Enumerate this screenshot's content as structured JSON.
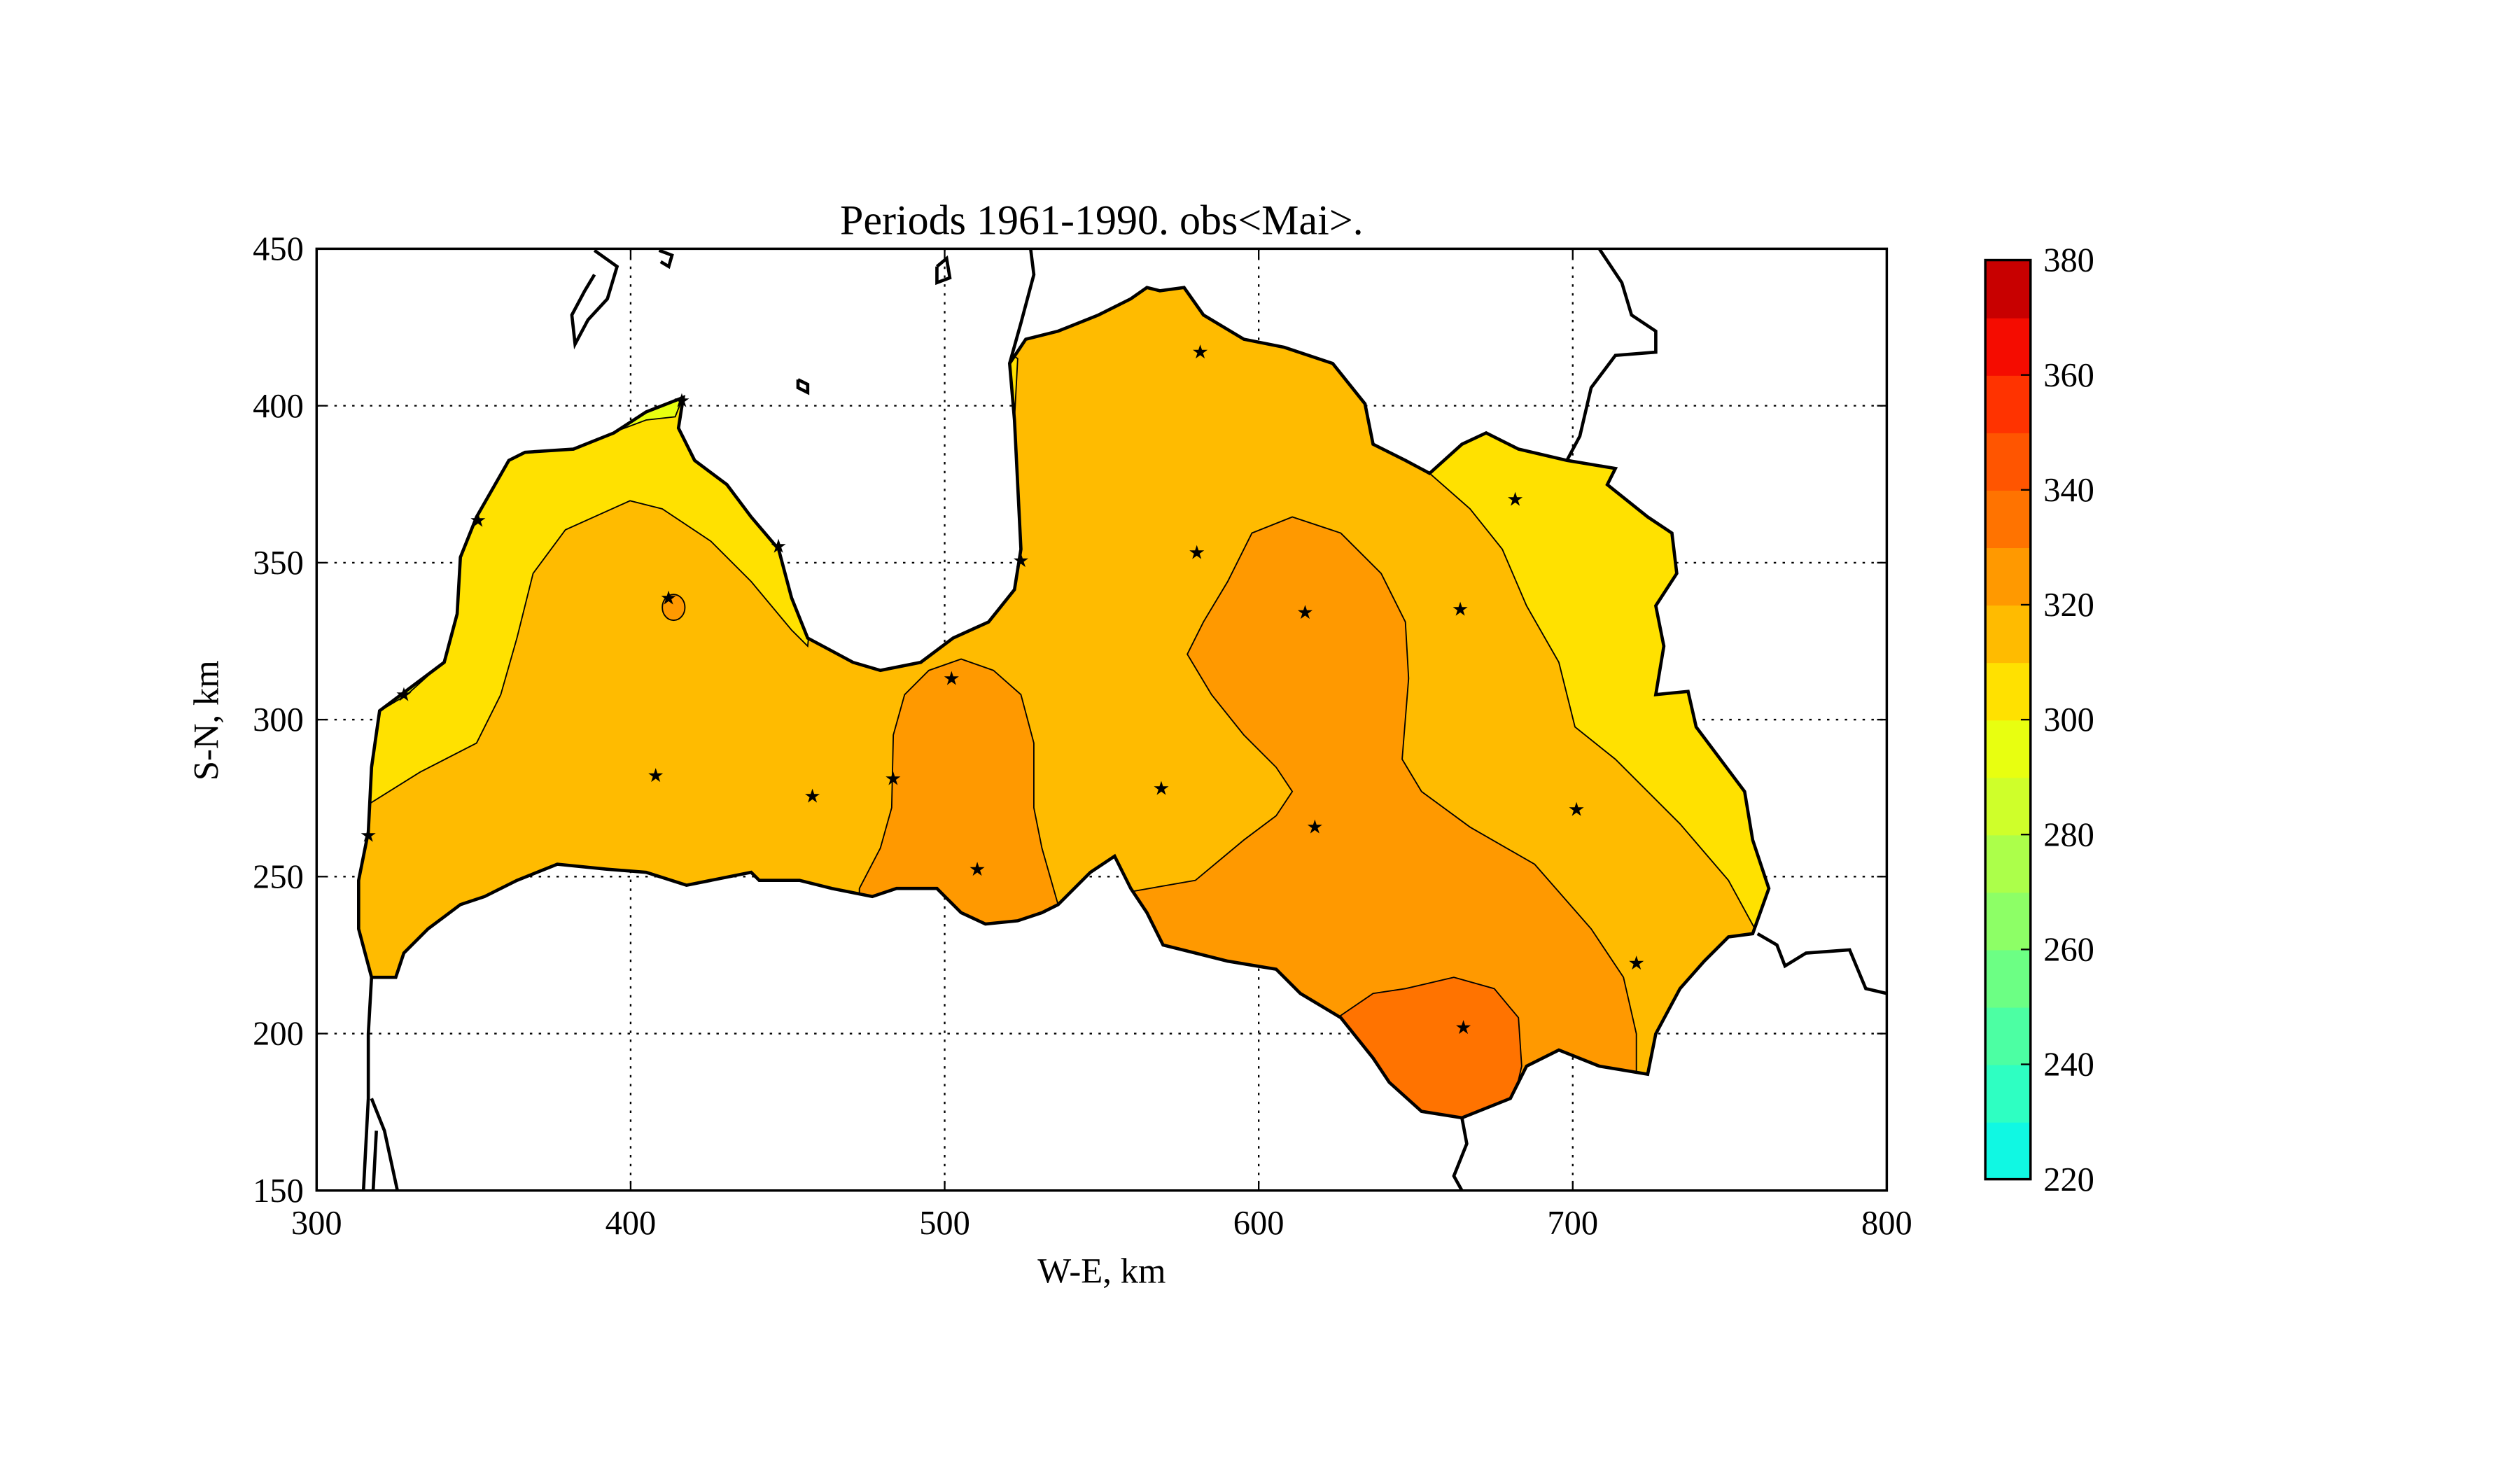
{
  "chart_data": {
    "type": "heatmap",
    "subtype": "filled-contour-map",
    "title": "Periods 1961-1990. obs<Mai>.",
    "xlabel": "W-E, km",
    "ylabel": "S-N, km",
    "xlim": [
      300,
      800
    ],
    "ylim": [
      150,
      450
    ],
    "xticks": [
      300,
      400,
      500,
      600,
      700,
      800
    ],
    "yticks": [
      150,
      200,
      250,
      300,
      350,
      400,
      450
    ],
    "grid": true,
    "colorbar": {
      "placement": "right",
      "levels": [
        220,
        230,
        240,
        250,
        260,
        270,
        280,
        290,
        300,
        310,
        320,
        330,
        340,
        350,
        360,
        370,
        380
      ],
      "ticks": [
        220,
        240,
        260,
        280,
        300,
        320,
        340,
        360,
        380
      ],
      "colors": [
        "#10F8E3",
        "#2EFFC2",
        "#4CFFA3",
        "#6CFF84",
        "#8DFF66",
        "#ACFF4A",
        "#CFFF2A",
        "#E8FF10",
        "#FFE100",
        "#FFBB00",
        "#FF9900",
        "#FF7300",
        "#FF5500",
        "#FF3300",
        "#F50C00",
        "#C80000"
      ]
    },
    "contour_regions": [
      {
        "range": [
          290,
          300
        ],
        "color": "#E8FF10"
      },
      {
        "range": [
          300,
          310
        ],
        "color": "#FFE100"
      },
      {
        "range": [
          310,
          320
        ],
        "color": "#FFBB00"
      },
      {
        "range": [
          320,
          330
        ],
        "color": "#FF9900"
      },
      {
        "range": [
          330,
          340
        ],
        "color": "#FF7300"
      }
    ],
    "stations": [
      {
        "x": 581.4,
        "y": 417.1
      },
      {
        "x": 580.3,
        "y": 353.3
      },
      {
        "x": 447.1,
        "y": 355.3
      },
      {
        "x": 524.3,
        "y": 350.7
      },
      {
        "x": 681.7,
        "y": 370.2
      },
      {
        "x": 412.1,
        "y": 338.8
      },
      {
        "x": 614.8,
        "y": 334.2
      },
      {
        "x": 664.2,
        "y": 335.2
      },
      {
        "x": 502.2,
        "y": 313.1
      },
      {
        "x": 327.8,
        "y": 308.0
      },
      {
        "x": 408.0,
        "y": 282.2
      },
      {
        "x": 457.9,
        "y": 275.6
      },
      {
        "x": 483.6,
        "y": 281.2
      },
      {
        "x": 569.0,
        "y": 278.1
      },
      {
        "x": 701.2,
        "y": 271.4
      },
      {
        "x": 617.9,
        "y": 265.8
      },
      {
        "x": 316.5,
        "y": 263.2
      },
      {
        "x": 510.4,
        "y": 252.4
      },
      {
        "x": 720.3,
        "y": 222.5
      },
      {
        "x": 665.2,
        "y": 202.0
      },
      {
        "x": 351.4,
        "y": 363.5
      },
      {
        "x": 416.3,
        "y": 401.6
      }
    ]
  }
}
